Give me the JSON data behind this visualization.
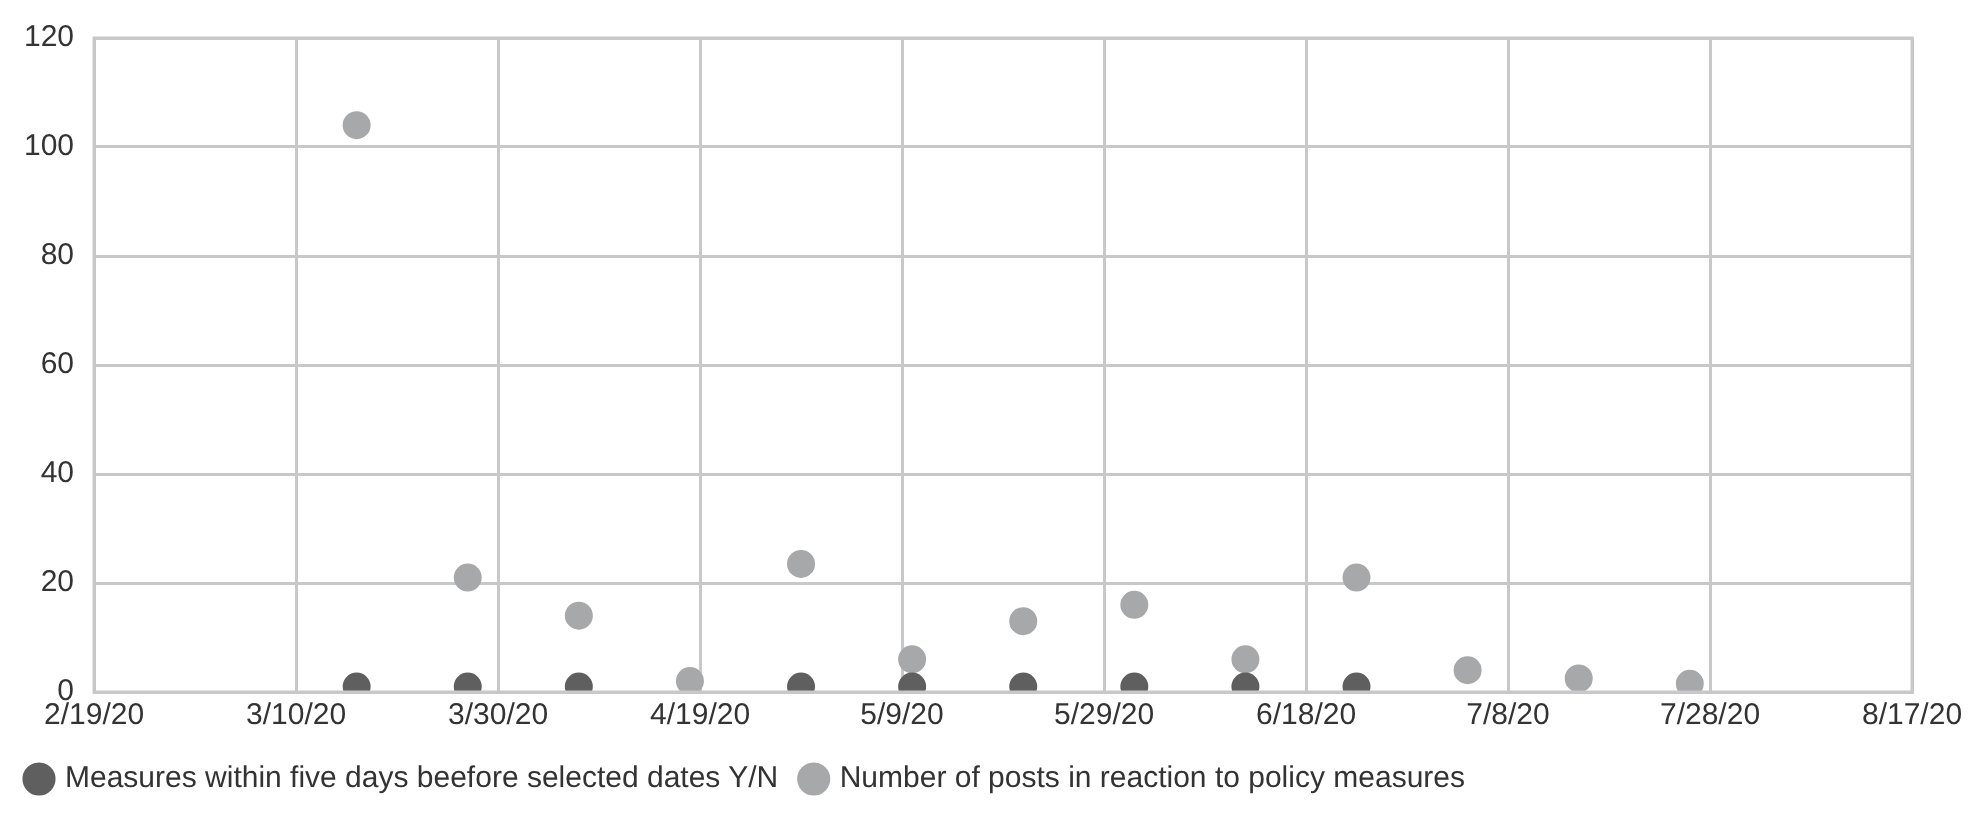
{
  "chart_data": {
    "type": "scatter",
    "x": [
      "2020-03-16",
      "2020-03-27",
      "2020-04-07",
      "2020-04-18",
      "2020-04-29",
      "2020-05-10",
      "2020-05-21",
      "2020-06-01",
      "2020-06-12",
      "2020-06-23",
      "2020-07-04",
      "2020-07-15",
      "2020-07-26"
    ],
    "series": [
      {
        "name": "Measures within five days beefore selected dates Y/N",
        "color": "#5f5f60",
        "values": [
          1,
          1,
          1,
          null,
          1,
          1,
          1,
          1,
          1,
          1,
          null,
          null,
          null
        ]
      },
      {
        "name": "Number of posts in reaction to policy measures",
        "color": "#a7a8aa",
        "values": [
          104,
          21,
          14,
          2,
          23.5,
          6,
          13,
          16,
          6,
          21,
          4,
          2.5,
          1.5
        ]
      }
    ],
    "xlim": [
      "2020-02-19",
      "2020-08-17"
    ],
    "xticks": [
      {
        "value": "2020-02-19",
        "label": "2/19/20"
      },
      {
        "value": "2020-03-10",
        "label": "3/10/20"
      },
      {
        "value": "2020-03-30",
        "label": "3/30/20"
      },
      {
        "value": "2020-04-19",
        "label": "4/19/20"
      },
      {
        "value": "2020-05-09",
        "label": "5/9/20"
      },
      {
        "value": "2020-05-29",
        "label": "5/29/20"
      },
      {
        "value": "2020-06-18",
        "label": "6/18/20"
      },
      {
        "value": "2020-07-08",
        "label": "7/8/20"
      },
      {
        "value": "2020-07-28",
        "label": "7/28/20"
      },
      {
        "value": "2020-08-17",
        "label": "8/17/20"
      }
    ],
    "ylim": [
      0,
      120
    ],
    "yticks": [
      0,
      20,
      40,
      60,
      80,
      100,
      120
    ],
    "grid": true,
    "legend": "bottom",
    "marker": "circle"
  }
}
